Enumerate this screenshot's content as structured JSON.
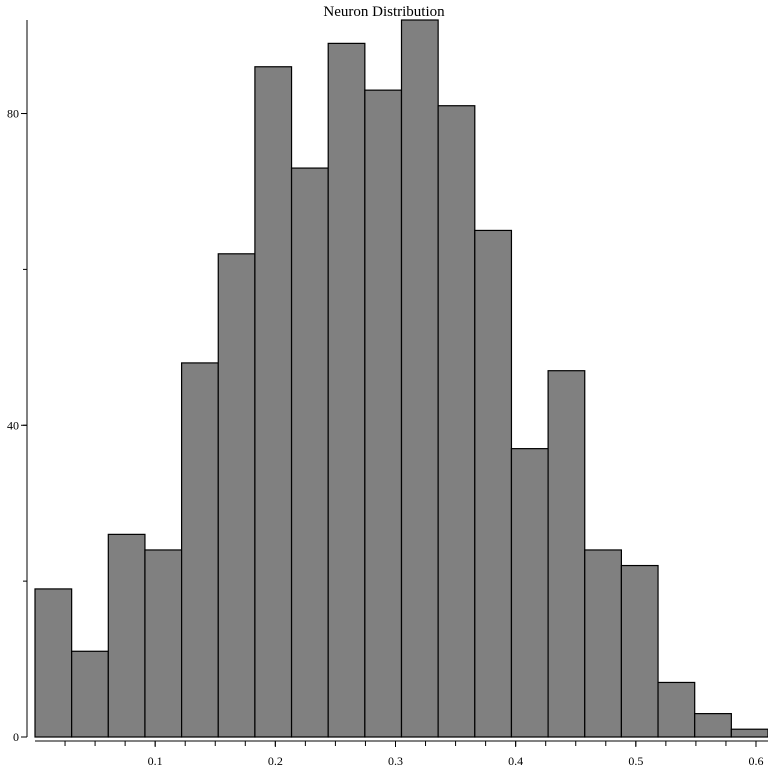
{
  "chart_data": {
    "type": "bar",
    "title": "Neuron Distribution",
    "xlabel": "",
    "ylabel": "",
    "xlim": [
      0.0,
      0.61
    ],
    "ylim": [
      0,
      92
    ],
    "bin_edges": [
      0.0,
      0.0305,
      0.061,
      0.0915,
      0.122,
      0.1525,
      0.183,
      0.2135,
      0.244,
      0.2745,
      0.305,
      0.3355,
      0.366,
      0.3965,
      0.427,
      0.4575,
      0.488,
      0.5185,
      0.549,
      0.5795,
      0.61
    ],
    "values": [
      19,
      11,
      26,
      24,
      48,
      62,
      86,
      73,
      89,
      83,
      92,
      81,
      65,
      37,
      47,
      24,
      22,
      7,
      3,
      1
    ],
    "x_ticks": [
      {
        "value": 0.1,
        "label": "0.1"
      },
      {
        "value": 0.2,
        "label": "0.2"
      },
      {
        "value": 0.3,
        "label": "0.3"
      },
      {
        "value": 0.4,
        "label": "0.4"
      },
      {
        "value": 0.5,
        "label": "0.5"
      },
      {
        "value": 0.6,
        "label": "0.6"
      }
    ],
    "x_minor_tick_step": 0.025,
    "y_ticks": [
      {
        "value": 0,
        "label": "0"
      },
      {
        "value": 40,
        "label": "40"
      },
      {
        "value": 80,
        "label": "80"
      }
    ],
    "y_minor_tick_step": 20,
    "bar_color": "#808080",
    "edge_color": "#000000",
    "grid": false,
    "legend": false
  }
}
